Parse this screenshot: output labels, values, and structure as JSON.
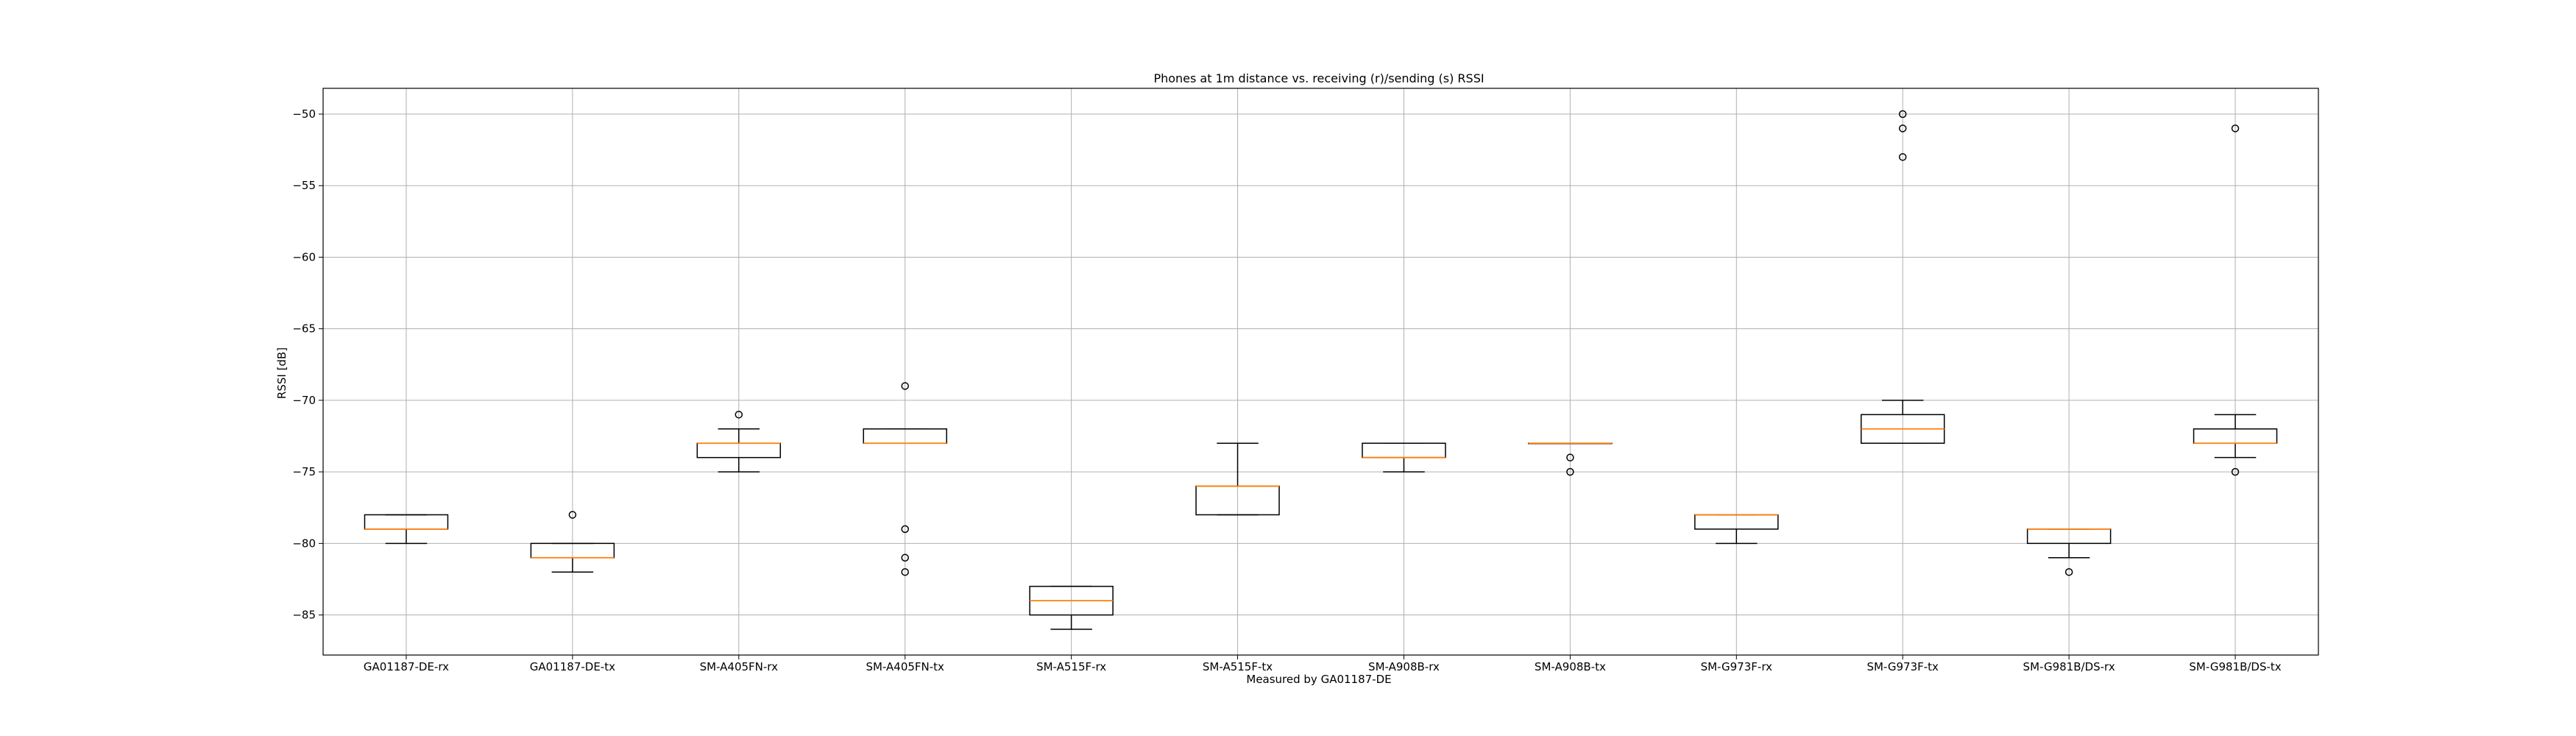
{
  "chart_data": {
    "type": "box",
    "title": "Phones at 1m distance vs. receiving (r)/sending (s) RSSI",
    "xlabel": "Measured by GA01187-DE",
    "ylabel": "RSSI [dB]",
    "ylim": [
      -87.8,
      -48.2
    ],
    "yticks": [
      -50,
      -55,
      -60,
      -65,
      -70,
      -75,
      -80,
      -85
    ],
    "grid": true,
    "colors": {
      "box": "#000000",
      "median": "#ff7f0e",
      "grid": "#b0b0b0",
      "axes": "#000000"
    },
    "categories": [
      "GA01187-DE-rx",
      "GA01187-DE-tx",
      "SM-A405FN-rx",
      "SM-A405FN-tx",
      "SM-A515F-rx",
      "SM-A515F-tx",
      "SM-A908B-rx",
      "SM-A908B-tx",
      "SM-G973F-rx",
      "SM-G973F-tx",
      "SM-G981B/DS-rx",
      "SM-G981B/DS-tx"
    ],
    "boxes": [
      {
        "label": "GA01187-DE-rx",
        "whislo": -80,
        "q1": -79,
        "med": -79,
        "q3": -78,
        "whishi": -78,
        "fliers": []
      },
      {
        "label": "GA01187-DE-tx",
        "whislo": -82,
        "q1": -81,
        "med": -81,
        "q3": -80,
        "whishi": -80,
        "fliers": [
          -78
        ]
      },
      {
        "label": "SM-A405FN-rx",
        "whislo": -75,
        "q1": -74,
        "med": -73,
        "q3": -73,
        "whishi": -72,
        "fliers": [
          -71
        ]
      },
      {
        "label": "SM-A405FN-tx",
        "whislo": -73,
        "q1": -73,
        "med": -73,
        "q3": -72,
        "whishi": -72,
        "fliers": [
          -69,
          -79,
          -81,
          -82
        ]
      },
      {
        "label": "SM-A515F-rx",
        "whislo": -86,
        "q1": -85,
        "med": -84,
        "q3": -83,
        "whishi": -83,
        "fliers": []
      },
      {
        "label": "SM-A515F-tx",
        "whislo": -78,
        "q1": -78,
        "med": -76,
        "q3": -76,
        "whishi": -73,
        "fliers": []
      },
      {
        "label": "SM-A908B-rx",
        "whislo": -75,
        "q1": -74,
        "med": -74,
        "q3": -73,
        "whishi": -73,
        "fliers": []
      },
      {
        "label": "SM-A908B-tx",
        "whislo": -73,
        "q1": -73,
        "med": -73,
        "q3": -73,
        "whishi": -73,
        "fliers": [
          -74,
          -75
        ]
      },
      {
        "label": "SM-G973F-rx",
        "whislo": -80,
        "q1": -79,
        "med": -78,
        "q3": -78,
        "whishi": -78,
        "fliers": []
      },
      {
        "label": "SM-G973F-tx",
        "whislo": -73,
        "q1": -73,
        "med": -72,
        "q3": -71,
        "whishi": -70,
        "fliers": [
          -50,
          -51,
          -53
        ]
      },
      {
        "label": "SM-G981B/DS-rx",
        "whislo": -81,
        "q1": -80,
        "med": -79,
        "q3": -79,
        "whishi": -79,
        "fliers": [
          -82
        ]
      },
      {
        "label": "SM-G981B/DS-tx",
        "whislo": -74,
        "q1": -73,
        "med": -73,
        "q3": -72,
        "whishi": -71,
        "fliers": [
          -51,
          -75
        ]
      }
    ]
  }
}
